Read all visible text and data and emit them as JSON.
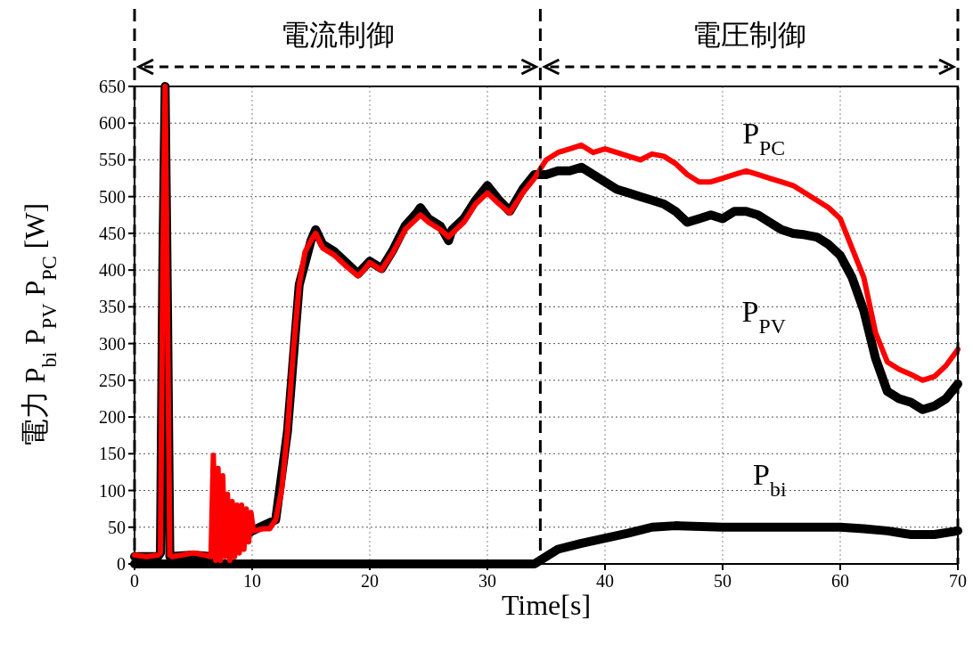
{
  "chart_data": {
    "type": "line",
    "xlabel": "Time[s]",
    "ylabel": "電力  P$_{bi}$ P$_{PV}$ P$_{PC}$ [W]",
    "annotations": [
      "電流制御",
      "電圧制御"
    ],
    "xlim": [
      0,
      70
    ],
    "ylim": [
      0,
      650
    ],
    "xticks": [
      0,
      10,
      20,
      30,
      40,
      50,
      60,
      70
    ],
    "yticks": [
      0,
      50,
      100,
      150,
      200,
      250,
      300,
      350,
      400,
      450,
      500,
      550,
      600,
      650
    ],
    "grid": true,
    "line_style": "solid",
    "ref_lines": [
      {
        "axis": "x",
        "value": 0,
        "color": "#000000",
        "line_style": "dashed"
      },
      {
        "axis": "x",
        "value": 34.5,
        "color": "#000000",
        "line_style": "dashed"
      },
      {
        "axis": "x",
        "value": 70,
        "color": "#000000",
        "line_style": "dashed"
      }
    ],
    "series": [
      {
        "name": "P$_{PV}$",
        "color": "#000000",
        "x": [
          0,
          2,
          2.2,
          2.4,
          2.6,
          2.8,
          3,
          5,
          6.5,
          10,
          12,
          13,
          14,
          15,
          15.4,
          16,
          17,
          18,
          19,
          20,
          21,
          22,
          23,
          24,
          24.3,
          25,
          26,
          26.7,
          27,
          28,
          29,
          30,
          31,
          31.9,
          33,
          34,
          35,
          36,
          37,
          38,
          39,
          40,
          41,
          42,
          43,
          44,
          45,
          46,
          47,
          48,
          49,
          50,
          51,
          52,
          53,
          54,
          55,
          56,
          57,
          58,
          59,
          60,
          61,
          62,
          63,
          64,
          65,
          66,
          67,
          68,
          69,
          70
        ],
        "values": [
          10,
          10,
          15,
          400,
          650,
          350,
          10,
          12,
          10,
          45,
          60,
          180,
          380,
          440,
          455,
          435,
          425,
          410,
          395,
          412,
          402,
          428,
          460,
          478,
          485,
          470,
          460,
          440,
          455,
          470,
          495,
          515,
          495,
          480,
          510,
          530,
          530,
          535,
          535,
          540,
          530,
          520,
          510,
          505,
          500,
          495,
          490,
          480,
          465,
          470,
          475,
          470,
          480,
          480,
          475,
          465,
          455,
          450,
          448,
          445,
          435,
          420,
          390,
          345,
          280,
          235,
          225,
          220,
          210,
          215,
          225,
          245
        ]
      },
      {
        "name": "P$_{bi}$",
        "color": "#000000",
        "x": [
          0,
          10,
          20,
          30,
          34,
          35,
          36,
          38,
          40,
          42,
          44,
          46,
          50,
          55,
          60,
          62,
          64,
          66,
          68,
          70
        ],
        "values": [
          0,
          0,
          0,
          0,
          0,
          10,
          20,
          28,
          35,
          42,
          50,
          52,
          50,
          50,
          50,
          48,
          45,
          40,
          40,
          45
        ]
      },
      {
        "name": "P$_{PC}$",
        "color": "#ff0000",
        "x": [
          0,
          1,
          2,
          2.2,
          2.4,
          2.6,
          2.8,
          3,
          3.2,
          4,
          5,
          6,
          6.5,
          6.7,
          6.9,
          7.1,
          7.3,
          7.5,
          7.7,
          7.9,
          8.1,
          8.3,
          8.5,
          8.7,
          8.9,
          9.1,
          9.3,
          9.5,
          9.7,
          9.9,
          10.1,
          11,
          11.5,
          12,
          12.5,
          13,
          13.5,
          14,
          14.5,
          15,
          15.4,
          16,
          17,
          18,
          19,
          19.5,
          20,
          21,
          22,
          23,
          24,
          24.3,
          25,
          26,
          26.7,
          27,
          28,
          29,
          30,
          31,
          31.9,
          33,
          34,
          35,
          36,
          37,
          38,
          39,
          40,
          41,
          42,
          43,
          44,
          45,
          46,
          47,
          48,
          49,
          50,
          51,
          52,
          53,
          54,
          55,
          56,
          57,
          58,
          59,
          60,
          61,
          62,
          63,
          64,
          65,
          66,
          67,
          68,
          69,
          70
        ],
        "values": [
          12,
          10,
          12,
          15,
          400,
          650,
          350,
          12,
          10,
          12,
          15,
          12,
          10,
          148,
          5,
          130,
          5,
          120,
          10,
          95,
          5,
          85,
          10,
          80,
          15,
          80,
          20,
          75,
          30,
          70,
          45,
          48,
          48,
          60,
          100,
          180,
          290,
          380,
          425,
          440,
          450,
          430,
          420,
          405,
          392,
          400,
          410,
          400,
          425,
          455,
          470,
          475,
          465,
          455,
          445,
          450,
          465,
          490,
          505,
          490,
          478,
          505,
          525,
          550,
          560,
          565,
          570,
          560,
          565,
          560,
          555,
          550,
          558,
          555,
          545,
          530,
          520,
          520,
          525,
          530,
          535,
          530,
          525,
          520,
          515,
          505,
          495,
          485,
          470,
          430,
          390,
          315,
          275,
          265,
          258,
          250,
          255,
          270,
          292
        ]
      }
    ]
  }
}
